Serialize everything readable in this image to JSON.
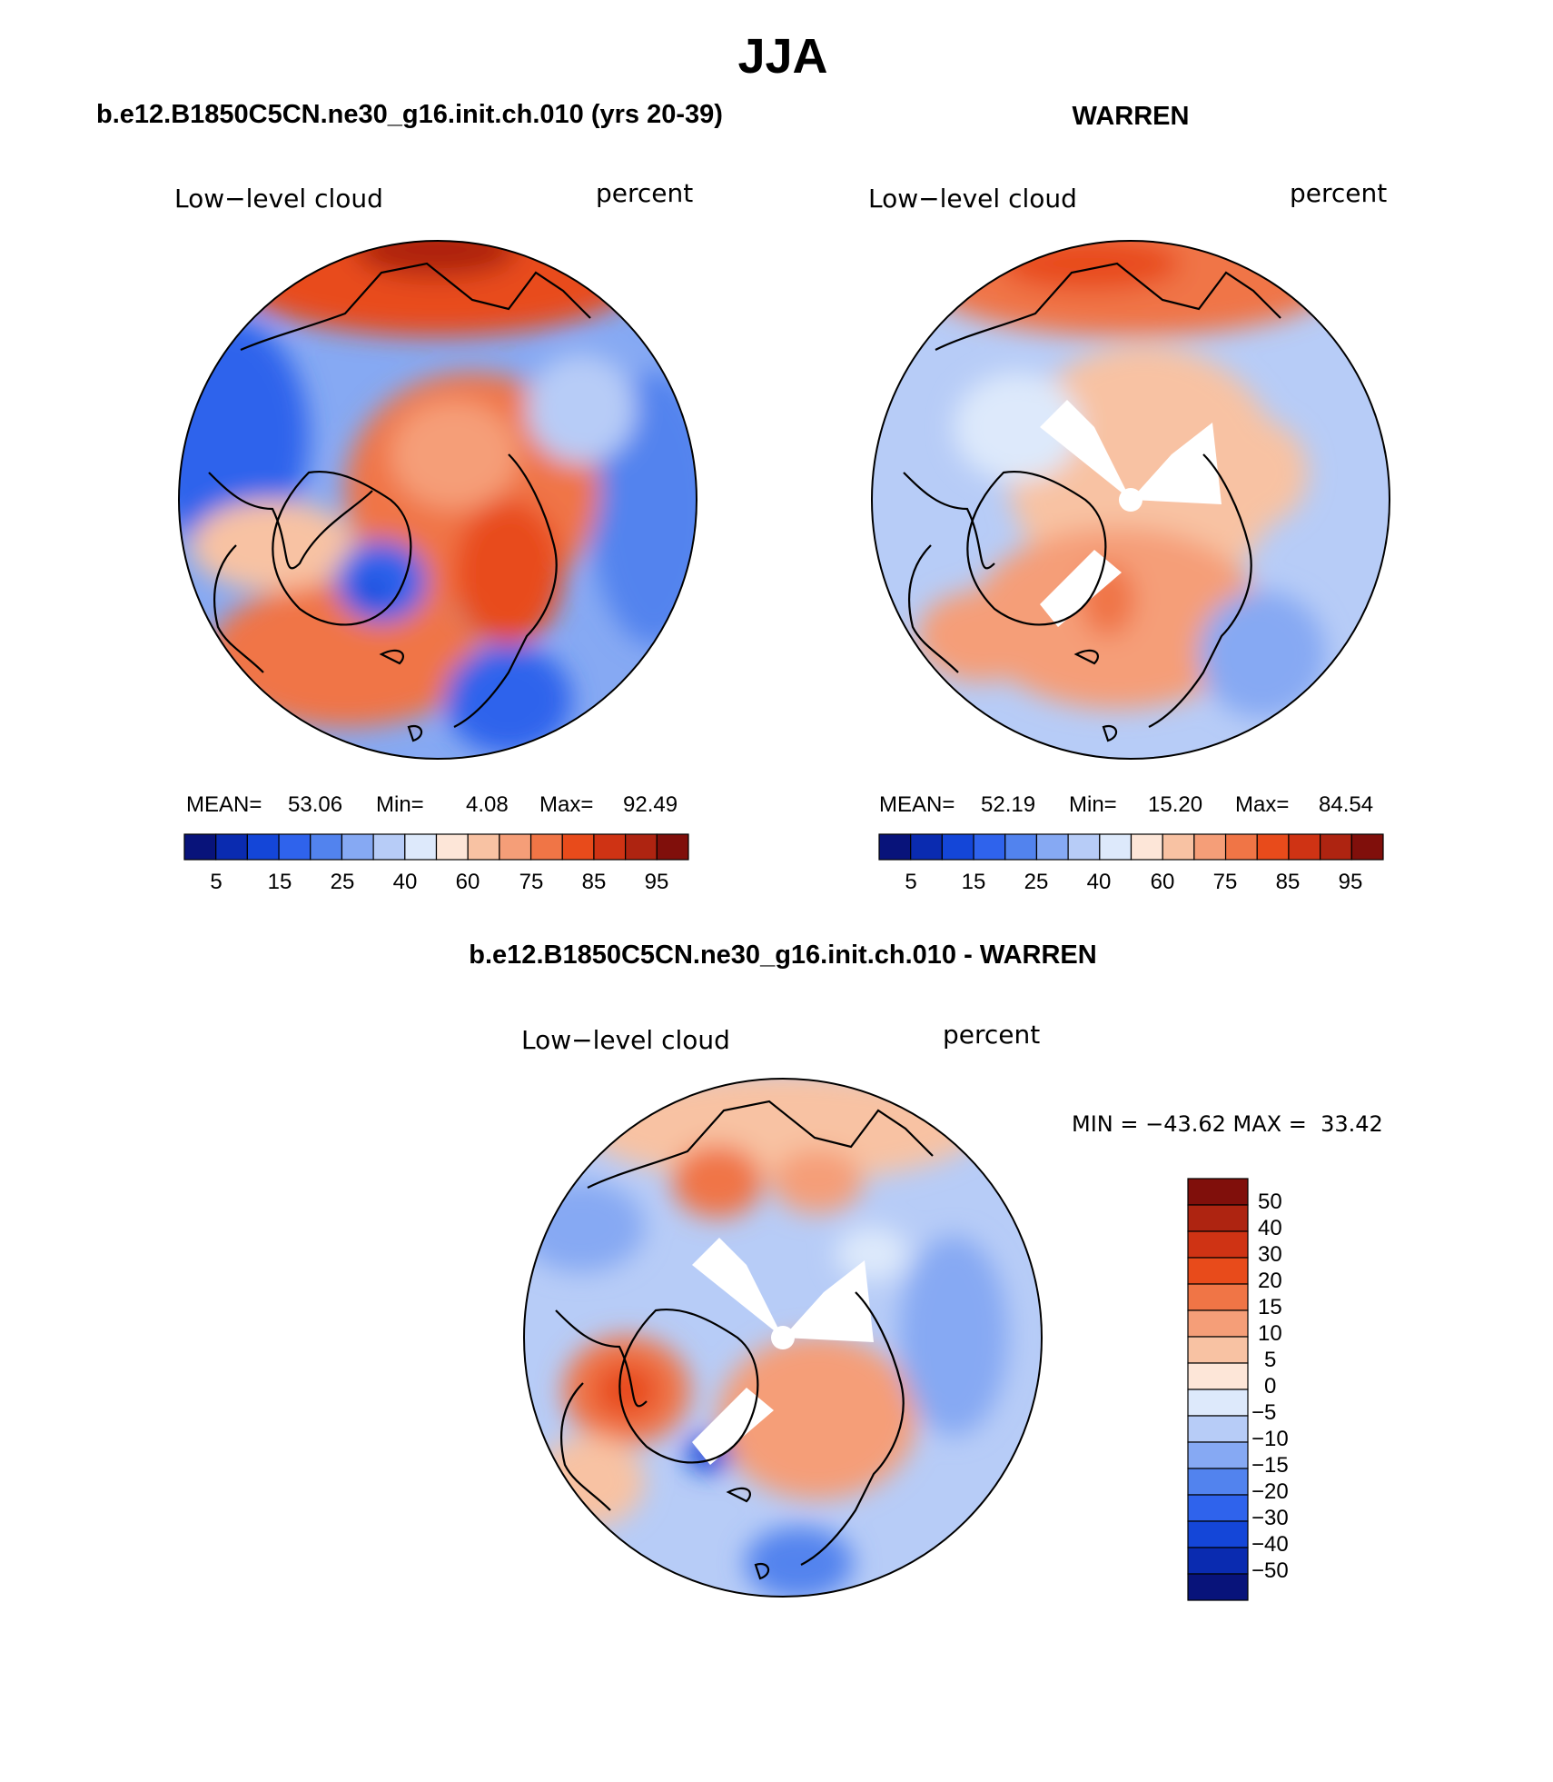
{
  "page": {
    "title": "JJA"
  },
  "colors": {
    "model_palette": [
      "#08137a",
      "#0a2bb0",
      "#1446d8",
      "#2f63ec",
      "#5283ee",
      "#86a9f3",
      "#b7ccf7",
      "#dde9fb",
      "#fde6d8",
      "#f8c2a3",
      "#f59e78",
      "#f07546",
      "#e84b1b",
      "#cf3314",
      "#ae2411",
      "#800f0b"
    ],
    "diff_palette": [
      "#08137a",
      "#0a2bb0",
      "#1446d8",
      "#2f63ec",
      "#5283ee",
      "#86a9f3",
      "#b7ccf7",
      "#dde9fb",
      "#fde6d8",
      "#f8c2a3",
      "#f59e78",
      "#f07546",
      "#e84b1b",
      "#cf3314",
      "#ae2411",
      "#800f0b"
    ]
  },
  "panels": [
    {
      "id": "model",
      "title": "b.e12.B1850C5CN.ne30_g16.init.ch.010 (yrs 20-39)",
      "left_label": "Low−level cloud",
      "right_label": "percent",
      "stats": {
        "mean_label": "MEAN=",
        "mean": "53.06",
        "min_label": "Min=",
        "min": "4.08",
        "max_label": "Max=",
        "max": "92.49"
      },
      "colorbar_ticks": [
        "5",
        "15",
        "25",
        "40",
        "60",
        "75",
        "85",
        "95"
      ]
    },
    {
      "id": "obs",
      "title": "WARREN",
      "left_label": "Low−level cloud",
      "right_label": "percent",
      "stats": {
        "mean_label": "MEAN=",
        "mean": "52.19",
        "min_label": "Min=",
        "min": "15.20",
        "max_label": "Max=",
        "max": "84.54"
      },
      "colorbar_ticks": [
        "5",
        "15",
        "25",
        "40",
        "60",
        "75",
        "85",
        "95"
      ]
    },
    {
      "id": "diff",
      "title": "b.e12.B1850C5CN.ne30_g16.init.ch.010 - WARREN",
      "left_label": "Low−level cloud",
      "right_label": "percent",
      "minmax": "MIN = −43.62 MAX =  33.42",
      "colorbar_ticks": [
        "50",
        "40",
        "30",
        "20",
        "15",
        "10",
        "5",
        "0",
        "−5",
        "−10",
        "−15",
        "−20",
        "−30",
        "−40",
        "−50"
      ]
    }
  ]
}
